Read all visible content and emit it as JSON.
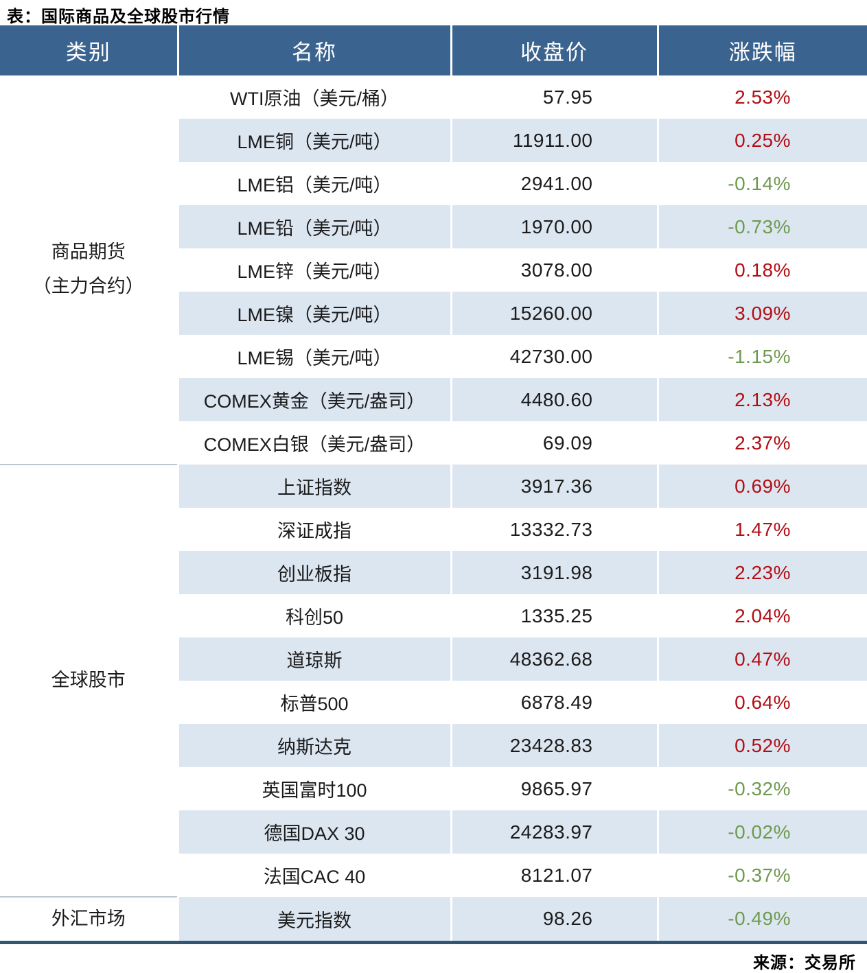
{
  "colors": {
    "header_bg": "#3A648F",
    "header_text": "#FFFFFF",
    "row_alt_bg": "#DCE6F1",
    "up_red": "#B30E14",
    "down_green": "#6E9A4F",
    "bottom_border": "#2F5673",
    "separator": "#BCC7D2"
  },
  "chart_data": {
    "type": "table",
    "title": "表：国际商品及全球股市行情",
    "source": "来源：交易所",
    "columns": [
      "类别",
      "名称",
      "收盘价",
      "涨跌幅"
    ],
    "groups": [
      {
        "category": "商品期货\n（主力合约）",
        "rows": [
          {
            "name": "WTI原油（美元/桶）",
            "close": "57.95",
            "change": "2.53%"
          },
          {
            "name": "LME铜（美元/吨）",
            "close": "11911.00",
            "change": "0.25%"
          },
          {
            "name": "LME铝（美元/吨）",
            "close": "2941.00",
            "change": "-0.14%"
          },
          {
            "name": "LME铅（美元/吨）",
            "close": "1970.00",
            "change": "-0.73%"
          },
          {
            "name": "LME锌（美元/吨）",
            "close": "3078.00",
            "change": "0.18%"
          },
          {
            "name": "LME镍（美元/吨）",
            "close": "15260.00",
            "change": "3.09%"
          },
          {
            "name": "LME锡（美元/吨）",
            "close": "42730.00",
            "change": "-1.15%"
          },
          {
            "name": "COMEX黄金（美元/盎司）",
            "close": "4480.60",
            "change": "2.13%"
          },
          {
            "name": "COMEX白银（美元/盎司）",
            "close": "69.09",
            "change": "2.37%"
          }
        ]
      },
      {
        "category": "全球股市",
        "rows": [
          {
            "name": "上证指数",
            "close": "3917.36",
            "change": "0.69%"
          },
          {
            "name": "深证成指",
            "close": "13332.73",
            "change": "1.47%"
          },
          {
            "name": "创业板指",
            "close": "3191.98",
            "change": "2.23%"
          },
          {
            "name": "科创50",
            "close": "1335.25",
            "change": "2.04%"
          },
          {
            "name": "道琼斯",
            "close": "48362.68",
            "change": "0.47%"
          },
          {
            "name": "标普500",
            "close": "6878.49",
            "change": "0.64%"
          },
          {
            "name": "纳斯达克",
            "close": "23428.83",
            "change": "0.52%"
          },
          {
            "name": "英国富时100",
            "close": "9865.97",
            "change": "-0.32%"
          },
          {
            "name": "德国DAX 30",
            "close": "24283.97",
            "change": "-0.02%"
          },
          {
            "name": "法国CAC 40",
            "close": "8121.07",
            "change": "-0.37%"
          }
        ]
      },
      {
        "category": "外汇市场",
        "rows": [
          {
            "name": "美元指数",
            "close": "98.26",
            "change": "-0.49%"
          }
        ]
      }
    ]
  }
}
